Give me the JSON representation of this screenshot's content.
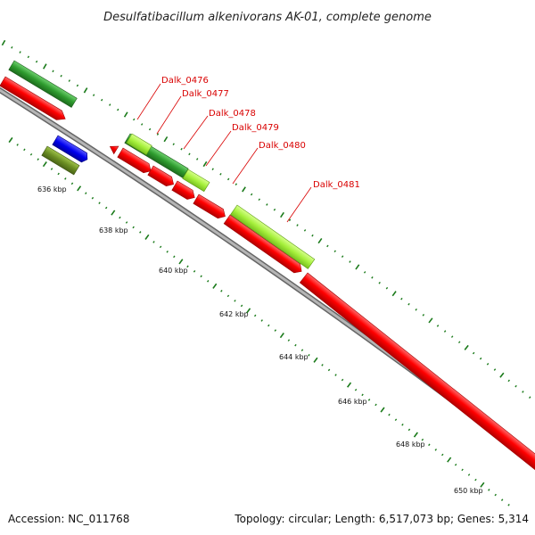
{
  "title": "Desulfatibacillum alkenivorans AK-01, complete genome",
  "footer": {
    "accession": "Accession: NC_011768",
    "summary": "Topology: circular; Length: 6,517,073 bp; Genes: 5,314"
  },
  "scale_labels": [
    "636 kbp",
    "638 kbp",
    "640 kbp",
    "642 kbp",
    "644 kbp",
    "646 kbp",
    "648 kbp",
    "650 kbp"
  ],
  "gene_labels": [
    "Dalk_0476",
    "Dalk_0477",
    "Dalk_0478",
    "Dalk_0479",
    "Dalk_0480",
    "Dalk_0481"
  ],
  "colors": {
    "cds": "#ff0000",
    "dark_green": "#2e8b2e",
    "light_green": "#a6f03c",
    "blue": "#0000ee",
    "olive": "#6b8e23",
    "backbone": "#999999",
    "label": "#d90000",
    "tick": "#1a7a1a"
  }
}
